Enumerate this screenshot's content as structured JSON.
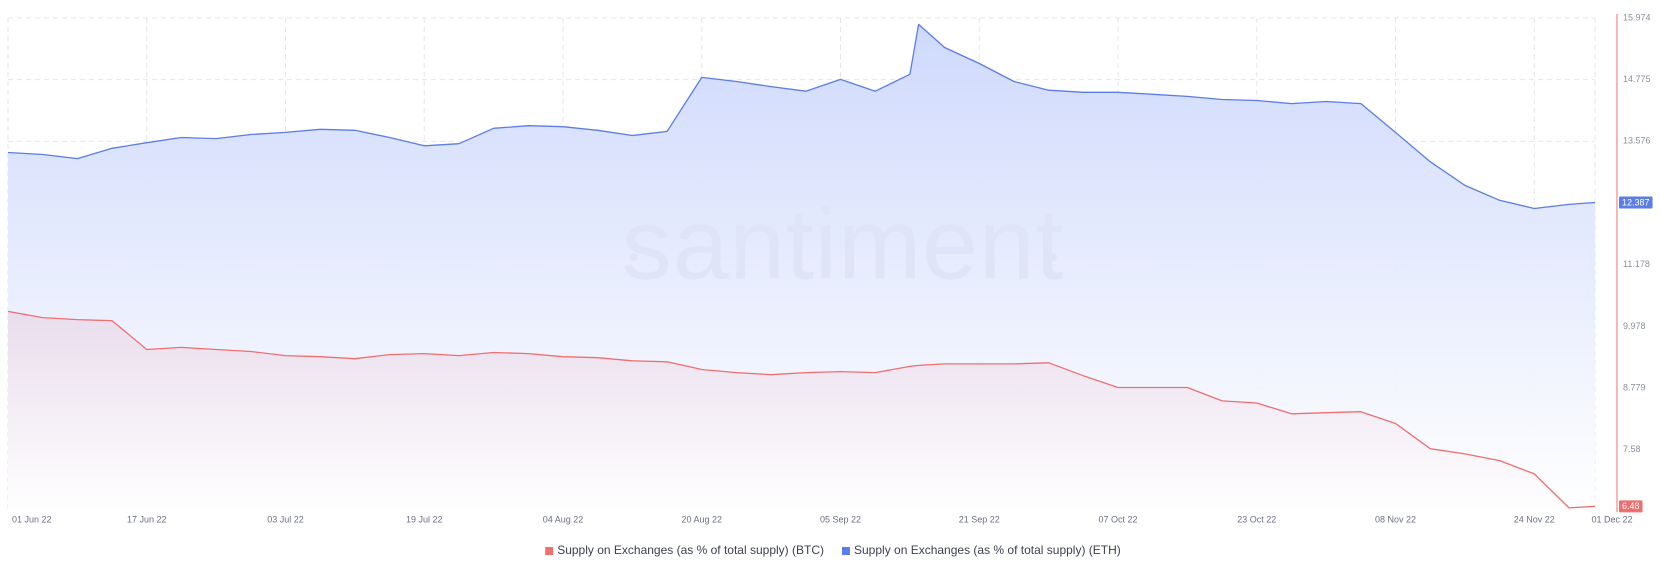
{
  "chart_data": {
    "type": "area",
    "watermark": "santiment",
    "x": [
      "2022-06-01",
      "2022-06-05",
      "2022-06-09",
      "2022-06-13",
      "2022-06-17",
      "2022-06-21",
      "2022-06-25",
      "2022-06-29",
      "2022-07-03",
      "2022-07-07",
      "2022-07-11",
      "2022-07-15",
      "2022-07-19",
      "2022-07-23",
      "2022-07-27",
      "2022-07-31",
      "2022-08-04",
      "2022-08-08",
      "2022-08-12",
      "2022-08-16",
      "2022-08-20",
      "2022-08-24",
      "2022-08-28",
      "2022-09-01",
      "2022-09-05",
      "2022-09-09",
      "2022-09-13",
      "2022-09-14",
      "2022-09-17",
      "2022-09-21",
      "2022-09-25",
      "2022-09-29",
      "2022-10-03",
      "2022-10-07",
      "2022-10-11",
      "2022-10-15",
      "2022-10-19",
      "2022-10-23",
      "2022-10-27",
      "2022-10-31",
      "2022-11-04",
      "2022-11-08",
      "2022-11-12",
      "2022-11-16",
      "2022-11-20",
      "2022-11-24",
      "2022-11-28",
      "2022-12-01"
    ],
    "series": [
      {
        "name": "Supply on Exchanges (as % of total supply) (BTC)",
        "color": "#ef6f6f",
        "values": [
          10.27,
          10.15,
          10.11,
          10.09,
          9.53,
          9.57,
          9.53,
          9.49,
          9.41,
          9.39,
          9.35,
          9.43,
          9.45,
          9.41,
          9.47,
          9.45,
          9.39,
          9.37,
          9.31,
          9.29,
          9.14,
          9.08,
          9.04,
          9.08,
          9.1,
          9.08,
          9.2,
          9.22,
          9.25,
          9.25,
          9.25,
          9.27,
          9.02,
          8.79,
          8.79,
          8.79,
          8.53,
          8.49,
          8.28,
          8.3,
          8.32,
          8.09,
          7.6,
          7.5,
          7.37,
          7.11,
          6.45,
          6.48
        ]
      },
      {
        "name": "Supply on Exchanges (as % of total supply) (ETH)",
        "color": "#5a7de6",
        "values": [
          13.36,
          13.32,
          13.24,
          13.44,
          13.55,
          13.65,
          13.63,
          13.71,
          13.75,
          13.81,
          13.79,
          13.65,
          13.49,
          13.53,
          13.83,
          13.88,
          13.86,
          13.79,
          13.69,
          13.77,
          14.82,
          14.74,
          14.64,
          14.55,
          14.78,
          14.55,
          14.88,
          15.85,
          15.4,
          15.09,
          14.74,
          14.57,
          14.53,
          14.53,
          14.49,
          14.45,
          14.39,
          14.37,
          14.31,
          14.35,
          14.31,
          13.75,
          13.18,
          12.72,
          12.43,
          12.27,
          12.35,
          12.387
        ]
      }
    ],
    "xlim": [
      "2022-06-01",
      "2022-12-01"
    ],
    "xticks": [
      {
        "value": "2022-06-01",
        "label": "01 Jun 22"
      },
      {
        "value": "2022-06-17",
        "label": "17 Jun 22"
      },
      {
        "value": "2022-07-03",
        "label": "03 Jul 22"
      },
      {
        "value": "2022-07-19",
        "label": "19 Jul 22"
      },
      {
        "value": "2022-08-04",
        "label": "04 Aug 22"
      },
      {
        "value": "2022-08-20",
        "label": "20 Aug 22"
      },
      {
        "value": "2022-09-05",
        "label": "05 Sep 22"
      },
      {
        "value": "2022-09-21",
        "label": "21 Sep 22"
      },
      {
        "value": "2022-10-07",
        "label": "07 Oct 22"
      },
      {
        "value": "2022-10-23",
        "label": "23 Oct 22"
      },
      {
        "value": "2022-11-08",
        "label": "08 Nov 22"
      },
      {
        "value": "2022-11-24",
        "label": "24 Nov 22"
      },
      {
        "value": "2022-12-01",
        "label": "01 Dec 22"
      }
    ],
    "ylim": [
      6.37,
      15.974
    ],
    "yticks": [
      7.58,
      8.779,
      9.978,
      11.178,
      13.576,
      14.775,
      15.974
    ],
    "grid": true,
    "legend": "bottom"
  }
}
